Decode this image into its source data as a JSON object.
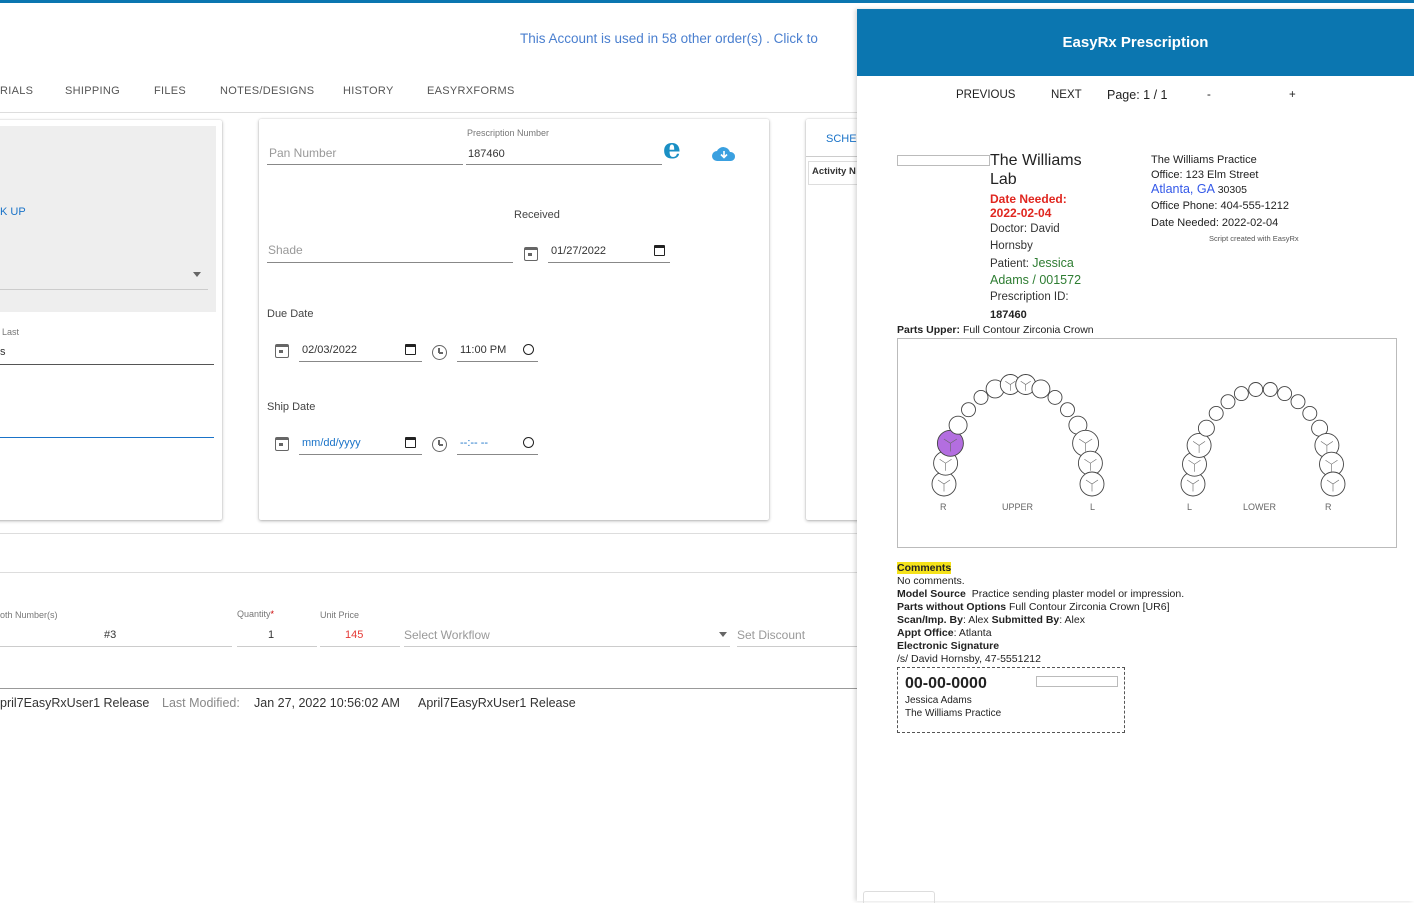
{
  "notice": "This Account is used in 58 other order(s) . Click to",
  "tabs": [
    "RIALS",
    "SHIPPING",
    "FILES",
    "NOTES/DESIGNS",
    "HISTORY",
    "EASYRXFORMS"
  ],
  "left_card": {
    "lookup": "K UP",
    "last_label": "Last",
    "last_value": "s"
  },
  "order_card": {
    "pan_placeholder": "Pan Number",
    "prescription_label": "Prescription Number",
    "prescription_value": "187460",
    "received_label": "Received",
    "shade_placeholder": "Shade",
    "received_date": "01/27/2022",
    "due_label": "Due Date",
    "due_date": "02/03/2022",
    "due_time": "11:00 PM",
    "ship_label": "Ship Date",
    "ship_date": "mm/dd/yyyy",
    "ship_time": "--:-- --",
    "easyrx_letter": "e"
  },
  "schedule_card": {
    "tab": "SCHED",
    "col": "Activity N"
  },
  "item_row": {
    "tooth_label": "oth Number(s)",
    "tooth_value": "#3",
    "quantity_label": "Quantity",
    "quantity_required": "*",
    "quantity_value": "1",
    "price_label": "Unit Price",
    "price_value": "145",
    "workflow_placeholder": "Select Workflow",
    "discount_placeholder": "Set Discount"
  },
  "footer": {
    "user": "pril7EasyRxUser1 Release",
    "modified_label": "Last Modified:",
    "modified_value": "Jan 27, 2022 10:56:02 AM",
    "modified_by": "April7EasyRxUser1 Release"
  },
  "rx": {
    "title": "EasyRx Prescription",
    "previous": "PREVIOUS",
    "next": "NEXT",
    "page": "Page: 1 / 1",
    "minus": "-",
    "plus": "+",
    "lab_name_1": "The Williams",
    "lab_name_2": "Lab",
    "date_needed_label": "Date Needed:",
    "date_needed_value": "2022-02-04",
    "doctor_1": "Doctor: David",
    "doctor_2": "Hornsby",
    "patient_label": "Patient:",
    "patient_1": "Jessica",
    "patient_2": "Adams / 001572",
    "rxid_label": "Prescription ID:",
    "rxid_value": "187460",
    "practice": "The Williams Practice",
    "office": "Office: 123 Elm Street",
    "city": "Atlanta, GA",
    "zip": "30305",
    "phone": "Office Phone: 404-555-1212",
    "date_needed_line": "Date Needed: 2022-02-04",
    "script_created": "Script created with EasyRx",
    "parts_upper_label": "Parts Upper:",
    "parts_upper_value": "Full Contour Zirconia Crown",
    "chart_labels": {
      "upper_r": "R",
      "upper": "UPPER",
      "upper_l": "L",
      "lower_l": "L",
      "lower": "LOWER",
      "lower_r": "R"
    },
    "highlight_color": "#b36ee0",
    "comments_label": "Comments",
    "comments_value": "No comments.",
    "model_source_label": "Model Source",
    "model_source_value": "Practice sending plaster model or impression.",
    "parts_wo_label": "Parts without Options",
    "parts_wo_value": "Full Contour Zirconia Crown [UR6]",
    "scan_label": "Scan/Imp. By",
    "scan_value": "Alex",
    "submitted_label": "Submitted By",
    "submitted_value": "Alex",
    "appt_label": "Appt Office",
    "appt_value": "Atlanta",
    "esig_label": "Electronic Signature",
    "esig_value": "/s/ David Hornsby, 47-5551212",
    "label_code": "00-00-0000",
    "label_patient": "Jessica Adams",
    "label_practice": "The Williams Practice"
  }
}
